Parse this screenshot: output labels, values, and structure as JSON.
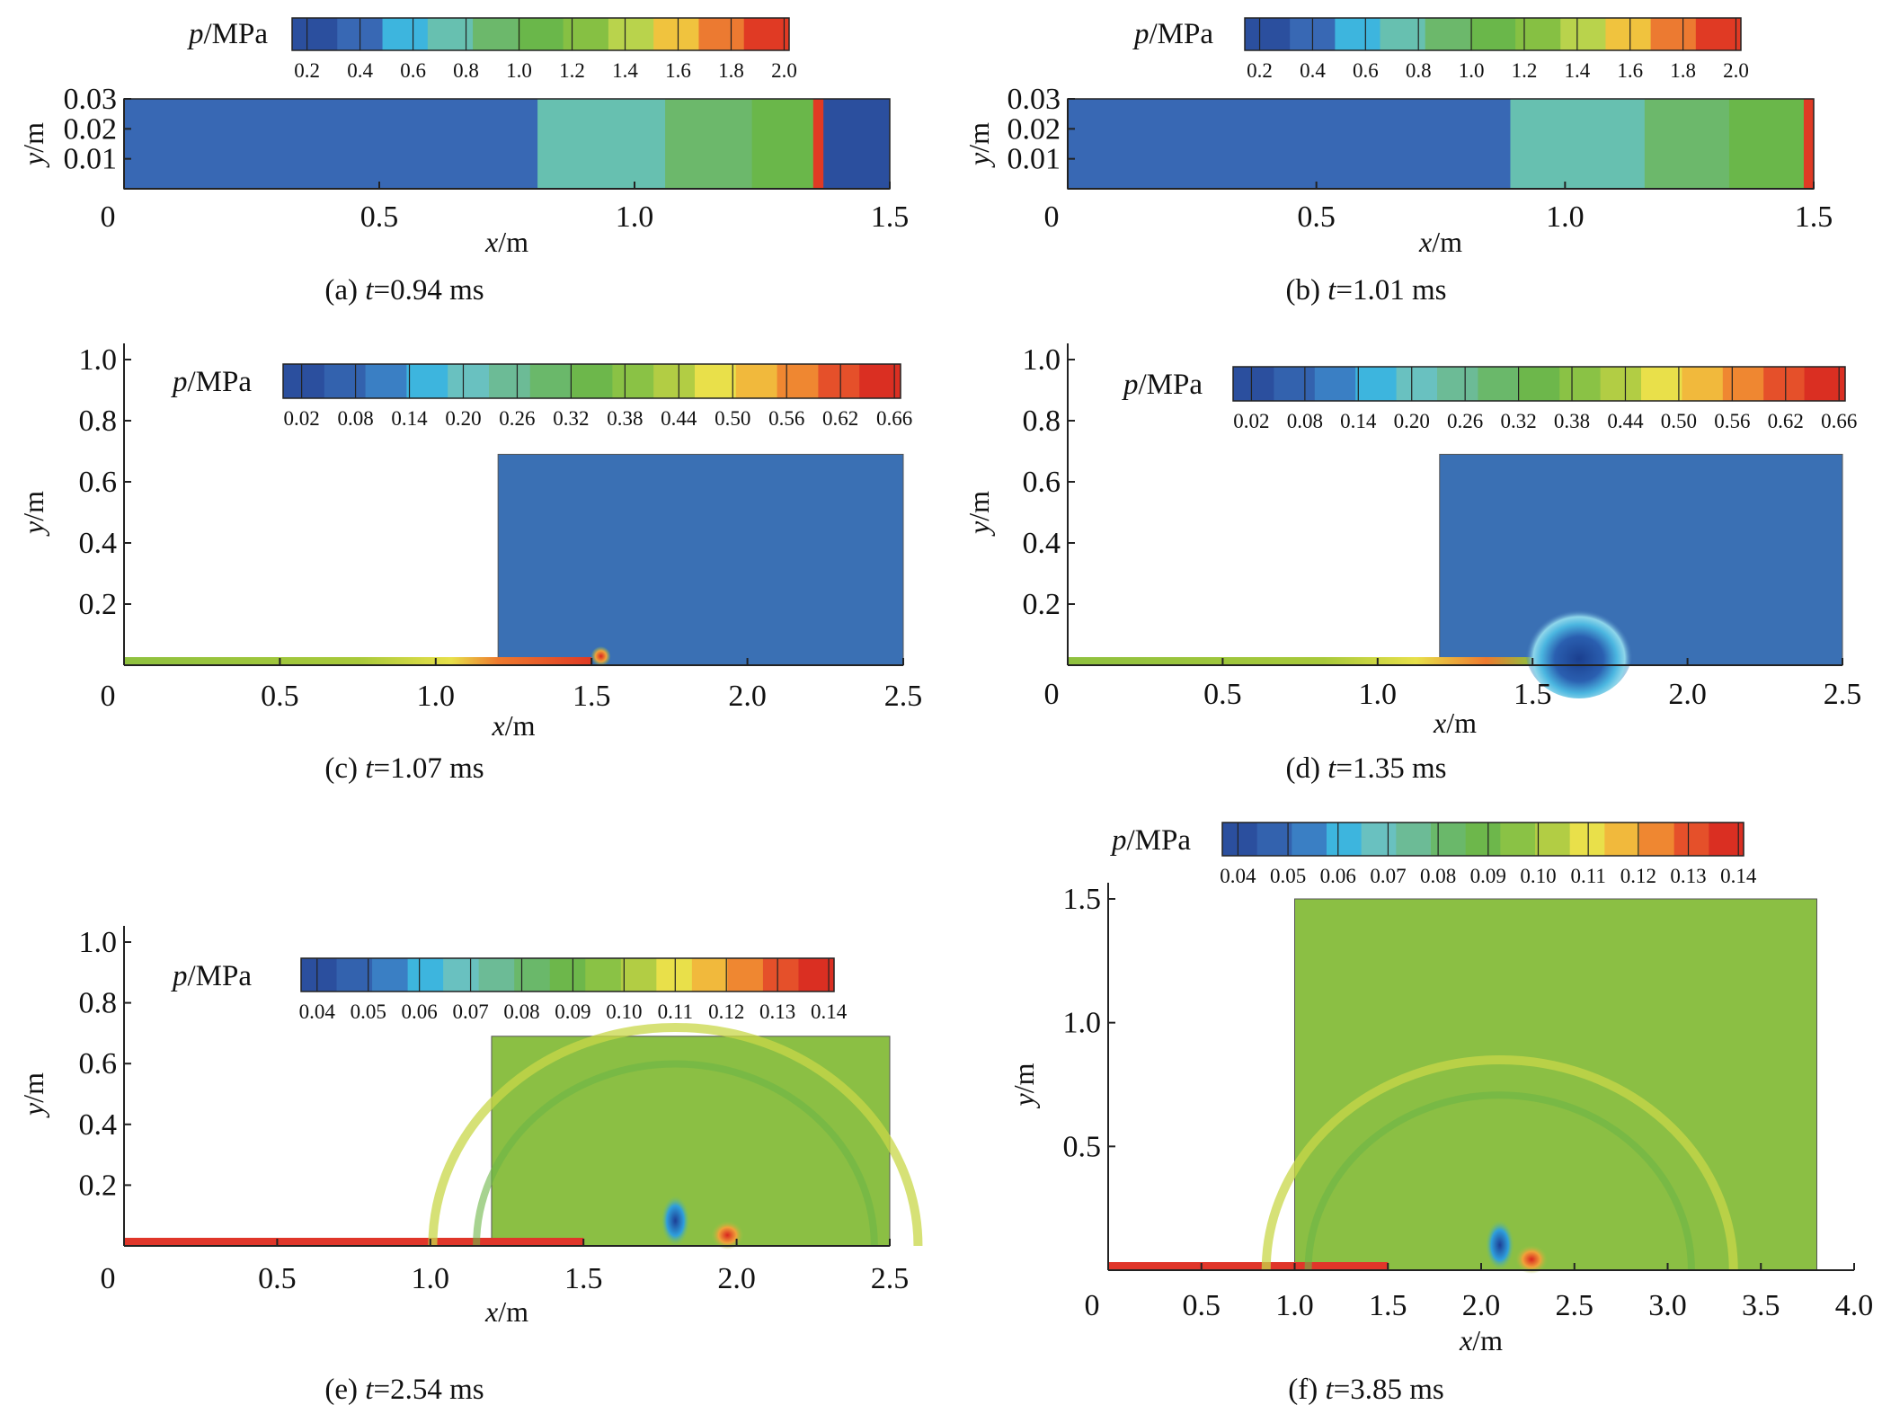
{
  "figure": {
    "panels": [
      {
        "id": "a",
        "caption": "(a) t=0.94 ms",
        "caption_parts": {
          "prefix": "(a) ",
          "var": "t",
          "rest": "=0.94 ms"
        },
        "xlabel": "x/m",
        "ylabel": "y/m",
        "colorbar": {
          "title": "p/MPa",
          "ticks": [
            "0.2",
            "0.4",
            "0.6",
            "0.8",
            "1.0",
            "1.2",
            "1.4",
            "1.6",
            "1.8",
            "2.0"
          ]
        },
        "chart_data": {
          "type": "heatmap",
          "xlim": [
            0,
            1.5
          ],
          "ylim": [
            0,
            0.03
          ],
          "xticks": [
            "0",
            "0.5",
            "1.0",
            "1.5"
          ],
          "yticks": [
            "0.01",
            "0.02",
            "0.03"
          ],
          "regions_p_MPa": [
            {
              "x_from": 0,
              "x_to": 0.81,
              "p": 0.45
            },
            {
              "x_from": 0.81,
              "x_to": 1.06,
              "p": 0.65
            },
            {
              "x_from": 1.06,
              "x_to": 1.23,
              "p": 0.85
            },
            {
              "x_from": 1.23,
              "x_to": 1.35,
              "p": 1.05
            },
            {
              "x_from": 1.35,
              "x_to": 1.37,
              "p": 2.0
            },
            {
              "x_from": 1.37,
              "x_to": 1.5,
              "p": 0.25
            }
          ]
        }
      },
      {
        "id": "b",
        "caption": "(b) t=1.01 ms",
        "caption_parts": {
          "prefix": "(b) ",
          "var": "t",
          "rest": "=1.01 ms"
        },
        "xlabel": "x/m",
        "ylabel": "y/m",
        "colorbar": {
          "title": "p/MPa",
          "ticks": [
            "0.2",
            "0.4",
            "0.6",
            "0.8",
            "1.0",
            "1.2",
            "1.4",
            "1.6",
            "1.8",
            "2.0"
          ]
        },
        "chart_data": {
          "type": "heatmap",
          "xlim": [
            0,
            1.5
          ],
          "ylim": [
            0,
            0.03
          ],
          "xticks": [
            "0",
            "0.5",
            "1.0",
            "1.5"
          ],
          "yticks": [
            "0.01",
            "0.02",
            "0.03"
          ],
          "regions_p_MPa": [
            {
              "x_from": 0,
              "x_to": 0.89,
              "p": 0.45
            },
            {
              "x_from": 0.89,
              "x_to": 1.16,
              "p": 0.65
            },
            {
              "x_from": 1.16,
              "x_to": 1.33,
              "p": 0.85
            },
            {
              "x_from": 1.33,
              "x_to": 1.48,
              "p": 1.05
            },
            {
              "x_from": 1.48,
              "x_to": 1.5,
              "p": 2.0
            }
          ]
        }
      },
      {
        "id": "c",
        "caption": "(c) t=1.07 ms",
        "caption_parts": {
          "prefix": "(c) ",
          "var": "t",
          "rest": "=1.07 ms"
        },
        "xlabel": "x/m",
        "ylabel": "y/m",
        "colorbar": {
          "title": "p/MPa",
          "ticks": [
            "0.02",
            "0.08",
            "0.14",
            "0.20",
            "0.26",
            "0.32",
            "0.38",
            "0.44",
            "0.50",
            "0.56",
            "0.62",
            "0.66"
          ]
        },
        "chart_data": {
          "type": "heatmap",
          "xlim": [
            0,
            2.5
          ],
          "ylim": [
            0,
            1.0
          ],
          "xticks": [
            "0",
            "0.5",
            "1.0",
            "1.5",
            "2.0",
            "2.5"
          ],
          "yticks": [
            "0.2",
            "0.4",
            "0.6",
            "0.8",
            "1.0"
          ],
          "tank_region": {
            "x_from": 1.2,
            "x_to": 2.5,
            "y_from": 0,
            "y_to": 0.69,
            "p": 0.1
          },
          "tube_region": {
            "x_from": 0,
            "x_to": 1.5,
            "y_from": 0,
            "y_to": 0.03,
            "p_left": 0.4,
            "p_right": 0.66
          }
        }
      },
      {
        "id": "d",
        "caption": "(d) t=1.35 ms",
        "caption_parts": {
          "prefix": "(d) ",
          "var": "t",
          "rest": "=1.35 ms"
        },
        "xlabel": "x/m",
        "ylabel": "y/m",
        "colorbar": {
          "title": "p/MPa",
          "ticks": [
            "0.02",
            "0.08",
            "0.14",
            "0.20",
            "0.26",
            "0.32",
            "0.38",
            "0.44",
            "0.50",
            "0.56",
            "0.62",
            "0.66"
          ]
        },
        "chart_data": {
          "type": "heatmap",
          "xlim": [
            0,
            2.5
          ],
          "ylim": [
            0,
            1.0
          ],
          "xticks": [
            "0",
            "0.5",
            "1.0",
            "1.5",
            "2.0",
            "2.5"
          ],
          "yticks": [
            "0.2",
            "0.4",
            "0.6",
            "0.8",
            "1.0"
          ],
          "tank_region": {
            "x_from": 1.2,
            "x_to": 2.5,
            "y_from": 0,
            "y_to": 0.69,
            "p": 0.1
          },
          "tube_region": {
            "x_from": 0,
            "x_to": 1.5,
            "y_from": 0,
            "y_to": 0.03,
            "p_left": 0.4,
            "p_right": 0.62
          }
        }
      },
      {
        "id": "e",
        "caption": "(e) t=2.54 ms",
        "caption_parts": {
          "prefix": "(e) ",
          "var": "t",
          "rest": "=2.54 ms"
        },
        "xlabel": "x/m",
        "ylabel": "y/m",
        "colorbar": {
          "title": "p/MPa",
          "ticks": [
            "0.04",
            "0.05",
            "0.06",
            "0.07",
            "0.08",
            "0.09",
            "0.10",
            "0.11",
            "0.12",
            "0.13",
            "0.14"
          ]
        },
        "chart_data": {
          "type": "heatmap",
          "xlim": [
            0,
            2.5
          ],
          "ylim": [
            0,
            1.0
          ],
          "xticks": [
            "0",
            "0.5",
            "1.0",
            "1.5",
            "2.0",
            "2.5"
          ],
          "yticks": [
            "0.2",
            "0.4",
            "0.6",
            "0.8",
            "1.0"
          ],
          "tank_region": {
            "x_from": 1.2,
            "x_to": 2.5,
            "y_from": 0,
            "y_to": 0.69,
            "p": 0.1
          },
          "tube_region": {
            "x_from": 0,
            "x_to": 1.5,
            "y_from": 0,
            "y_to": 0.03,
            "p_left": 0.14,
            "p_right": 0.14
          }
        }
      },
      {
        "id": "f",
        "caption": "(f) t=3.85 ms",
        "caption_parts": {
          "prefix": "(f) ",
          "var": "t",
          "rest": "=3.85 ms"
        },
        "xlabel": "x/m",
        "ylabel": "y/m",
        "colorbar": {
          "title": "p/MPa",
          "ticks": [
            "0.04",
            "0.05",
            "0.06",
            "0.07",
            "0.08",
            "0.09",
            "0.10",
            "0.11",
            "0.12",
            "0.13",
            "0.14"
          ]
        },
        "chart_data": {
          "type": "heatmap",
          "xlim": [
            0,
            4.0
          ],
          "ylim": [
            0,
            1.5
          ],
          "xticks": [
            "0",
            "0.5",
            "1.0",
            "1.5",
            "2.0",
            "2.5",
            "3.0",
            "3.5",
            "4.0"
          ],
          "yticks": [
            "0.5",
            "1.0",
            "1.5"
          ],
          "tank_region": {
            "x_from": 1.0,
            "x_to": 3.8,
            "y_from": 0,
            "y_to": 1.5,
            "p": 0.1
          },
          "tube_region": {
            "x_from": 0,
            "x_to": 1.5,
            "y_from": 0,
            "y_to": 0.03,
            "p_left": 0.14,
            "p_right": 0.14
          }
        }
      }
    ]
  }
}
